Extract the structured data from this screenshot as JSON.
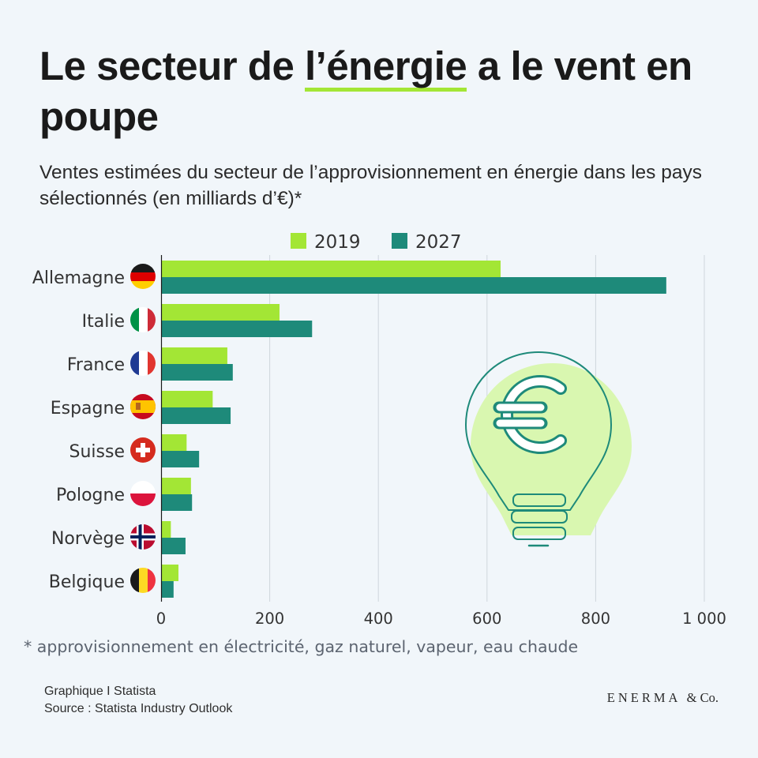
{
  "header": {
    "title_part1": "Le secteur de ",
    "title_highlight": "l’énergie",
    "title_part2": " a le vent en poupe",
    "subtitle": "Ventes estimées du secteur de l’approvisionnement en énergie dans les pays sélectionnés (en milliards d’€)*"
  },
  "colors": {
    "series_2019": "#a3e635",
    "series_2027": "#1e8a7a",
    "grid": "#cfd6dc",
    "bulb_fill": "#d9f7b0",
    "bulb_outline": "#1e8a7a"
  },
  "chart_data": {
    "type": "bar",
    "orientation": "horizontal",
    "categories": [
      "Allemagne",
      "Italie",
      "France",
      "Espagne",
      "Suisse",
      "Pologne",
      "Norvège",
      "Belgique"
    ],
    "series": [
      {
        "name": "2019",
        "values": [
          625,
          218,
          122,
          95,
          47,
          55,
          18,
          32
        ]
      },
      {
        "name": "2027",
        "values": [
          930,
          278,
          132,
          128,
          70,
          57,
          45,
          23
        ]
      }
    ],
    "xlim": [
      0,
      1000
    ],
    "xticks": [
      0,
      200,
      400,
      600,
      800,
      1000
    ],
    "xtick_labels": [
      "0",
      "200",
      "400",
      "600",
      "800",
      "1 000"
    ],
    "legend": "top-center",
    "grid": true
  },
  "footnote": "* approvisionnement en électricité, gaz naturel, vapeur, eau chaude",
  "credits": {
    "line1": "Graphique I Statista",
    "line2": "Source : Statista Industry Outlook"
  },
  "brand": {
    "name": "ENERMA",
    "suffix": "& Co."
  }
}
